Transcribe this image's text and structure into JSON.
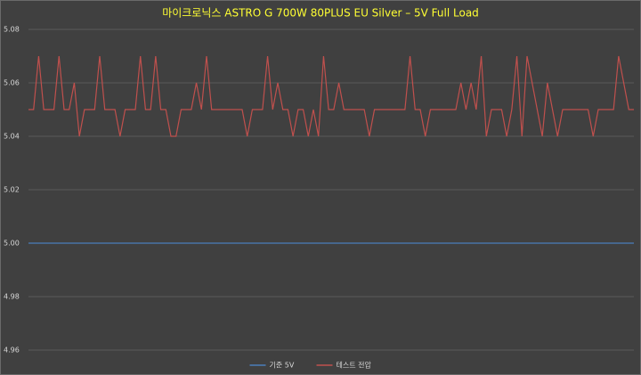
{
  "chart_data": {
    "type": "line",
    "title": "마이크로닉스 ASTRO G 700W 80PLUS EU Silver – 5V Full Load",
    "ylim": [
      4.96,
      5.08
    ],
    "yticks": [
      4.96,
      4.98,
      {
        "value": 5,
        "label": "5.00"
      },
      5.02,
      5.04,
      5.06,
      5.08
    ],
    "grid": true,
    "legend": "bottom",
    "series": [
      {
        "name": "기준 5V",
        "color": "#4a7ebb",
        "values": [
          5,
          5,
          5,
          5,
          5,
          5,
          5,
          5,
          5,
          5,
          5,
          5,
          5,
          5,
          5,
          5,
          5,
          5,
          5,
          5,
          5,
          5,
          5,
          5,
          5,
          5,
          5,
          5,
          5,
          5,
          5,
          5,
          5,
          5,
          5,
          5,
          5,
          5,
          5,
          5,
          5,
          5,
          5,
          5,
          5,
          5,
          5,
          5,
          5,
          5,
          5,
          5,
          5,
          5,
          5,
          5,
          5,
          5,
          5,
          5,
          5,
          5,
          5,
          5,
          5,
          5,
          5,
          5,
          5,
          5,
          5,
          5,
          5,
          5,
          5,
          5,
          5,
          5,
          5,
          5,
          5,
          5,
          5,
          5,
          5,
          5,
          5,
          5,
          5,
          5,
          5,
          5,
          5,
          5,
          5,
          5,
          5,
          5,
          5,
          5,
          5,
          5,
          5,
          5,
          5,
          5,
          5,
          5,
          5,
          5,
          5,
          5,
          5,
          5,
          5,
          5,
          5,
          5,
          5,
          5
        ]
      },
      {
        "name": "테스트 전압",
        "color": "#c0504d",
        "values": [
          5.05,
          5.05,
          5.07,
          5.05,
          5.05,
          5.05,
          5.07,
          5.05,
          5.05,
          5.06,
          5.04,
          5.05,
          5.05,
          5.05,
          5.07,
          5.05,
          5.05,
          5.05,
          5.04,
          5.05,
          5.05,
          5.05,
          5.07,
          5.05,
          5.05,
          5.07,
          5.05,
          5.05,
          5.04,
          5.04,
          5.05,
          5.05,
          5.05,
          5.06,
          5.05,
          5.07,
          5.05,
          5.05,
          5.05,
          5.05,
          5.05,
          5.05,
          5.05,
          5.04,
          5.05,
          5.05,
          5.05,
          5.07,
          5.05,
          5.06,
          5.05,
          5.05,
          5.04,
          5.05,
          5.05,
          5.04,
          5.05,
          5.04,
          5.07,
          5.05,
          5.05,
          5.06,
          5.05,
          5.05,
          5.05,
          5.05,
          5.05,
          5.04,
          5.05,
          5.05,
          5.05,
          5.05,
          5.05,
          5.05,
          5.05,
          5.07,
          5.05,
          5.05,
          5.04,
          5.05,
          5.05,
          5.05,
          5.05,
          5.05,
          5.05,
          5.06,
          5.05,
          5.06,
          5.05,
          5.07,
          5.04,
          5.05,
          5.05,
          5.05,
          5.04,
          5.05,
          5.07,
          5.04,
          5.07,
          5.06,
          5.05,
          5.04,
          5.06,
          5.05,
          5.04,
          5.05,
          5.05,
          5.05,
          5.05,
          5.05,
          5.05,
          5.04,
          5.05,
          5.05,
          5.05,
          5.05,
          5.07,
          5.06,
          5.05,
          5.05
        ]
      }
    ]
  }
}
